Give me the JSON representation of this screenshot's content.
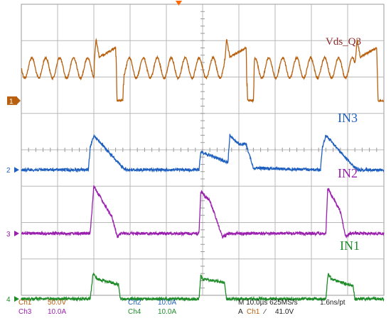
{
  "chart_data": {
    "type": "line",
    "title": "",
    "xlabel": "",
    "ylabel": "",
    "grid": true,
    "graticule": {
      "divisions_x": 10,
      "divisions_y": 8
    },
    "time_per_div_us": 10.0,
    "x_range_us": [
      0,
      100
    ],
    "channels": [
      {
        "id": "ch1",
        "marker": "1",
        "name": "Vds_Q3",
        "color": "#b8600e",
        "scale": "50.0V",
        "baseline_div": 2.65,
        "unit_per_div": 50.0,
        "unit": "V",
        "x_us": [
          0,
          20,
          20.6,
          21.5,
          26,
          26.4,
          28,
          28.3,
          56,
          56.6,
          57.5,
          62,
          62.4,
          64,
          64.3,
          92,
          92.6,
          93.5,
          98,
          98.4,
          100
        ],
        "y_div": [
          0.9,
          0.9,
          1.7,
          1.2,
          1.45,
          0,
          0,
          0.9,
          0.9,
          1.7,
          1.2,
          1.45,
          0,
          0,
          0.9,
          0.9,
          1.7,
          1.2,
          1.45,
          0,
          0
        ]
      },
      {
        "id": "ch2",
        "marker": "2",
        "name": "IN3",
        "color": "#1f5fbf",
        "scale": "10.0A",
        "baseline_div": 4.55,
        "unit_per_div": 10.0,
        "unit": "A",
        "x_us": [
          0,
          18.5,
          19,
          20,
          27.5,
          29,
          49,
          49.5,
          52,
          57,
          57.5,
          60,
          62,
          64,
          82.5,
          83,
          84,
          91.5,
          93,
          100
        ],
        "y_div": [
          0,
          0,
          0.6,
          0.95,
          0.1,
          0,
          0,
          0.5,
          0.4,
          0.2,
          0.95,
          0.7,
          0.7,
          0.05,
          0,
          0.6,
          0.95,
          0.1,
          0,
          0
        ]
      },
      {
        "id": "ch3",
        "marker": "3",
        "name": "IN2",
        "color": "#9a1fae",
        "scale": "10.0A",
        "baseline_div": 6.3,
        "unit_per_div": 10.0,
        "unit": "A",
        "x_us": [
          0,
          19,
          20,
          25,
          26.5,
          27.5,
          29,
          49,
          49.5,
          52,
          55.5,
          57,
          59,
          84,
          84.5,
          88,
          89.5,
          90.5,
          92,
          100
        ],
        "y_div": [
          0,
          0,
          1.3,
          0.45,
          -0.1,
          0,
          0,
          0,
          1.15,
          0.9,
          -0.1,
          0,
          0,
          0,
          1.25,
          0.6,
          -0.1,
          0,
          0,
          0
        ]
      },
      {
        "id": "ch4",
        "marker": "4",
        "name": "IN1",
        "color": "#1f8c2a",
        "scale": "10.0A",
        "baseline_div": 8.1,
        "unit_per_div": 10.0,
        "unit": "A",
        "x_us": [
          0,
          19,
          19.8,
          21,
          26.8,
          27.3,
          49,
          49.5,
          50,
          56,
          56.6,
          84,
          84.6,
          85.5,
          91.5,
          92,
          100
        ],
        "y_div": [
          0,
          0,
          0.7,
          0.55,
          0.4,
          0,
          0,
          0.65,
          0.55,
          0.45,
          0,
          0,
          0.7,
          0.55,
          0.35,
          0,
          0
        ]
      }
    ],
    "trigger": {
      "source": "Ch1",
      "slope": "rising",
      "level": "41.0V"
    },
    "status": {
      "ch1_label": "Ch1",
      "ch1_scale": "50.0V",
      "ch2_label": "Ch2",
      "ch2_scale": "10.0A",
      "ch3_label": "Ch3",
      "ch3_scale": "10.0A",
      "ch4_label": "Ch4",
      "ch4_scale": "10.0A",
      "timebase": "M 10.0µs 625MS/s",
      "resolution": "1.6ns/pt",
      "trigger_line_prefix": "A",
      "trigger_source": "Ch1",
      "trigger_slope_symbol": "∕",
      "trigger_level": "41.0V"
    },
    "label_colors": {
      "ch1": "#b8600e",
      "ch2": "#1f5fbf",
      "ch3": "#9a1fae",
      "ch4": "#1f8c2a",
      "trigger_marker": "#ff6a00"
    }
  }
}
